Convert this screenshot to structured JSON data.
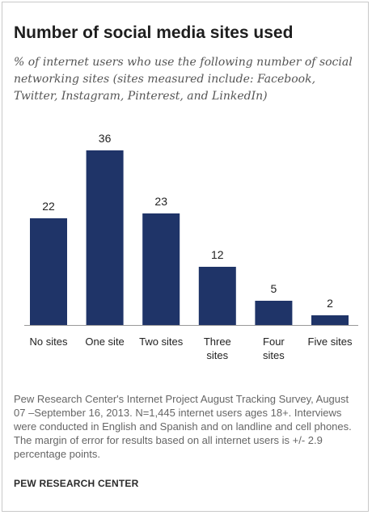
{
  "chart_data": {
    "type": "bar",
    "title": "Number of social media sites used",
    "subtitle": "% of internet users who use the following number of social networking sites (sites measured include: Facebook, Twitter, Instagram, Pinterest, and LinkedIn)",
    "categories": [
      "No sites",
      "One site",
      "Two sites",
      "Three sites",
      "Four sites",
      "Five sites"
    ],
    "category_lines": [
      [
        "No sites"
      ],
      [
        "One site"
      ],
      [
        "Two sites"
      ],
      [
        "Three",
        "sites"
      ],
      [
        "Four",
        "sites"
      ],
      [
        "Five sites"
      ]
    ],
    "values": [
      22,
      36,
      23,
      12,
      5,
      2
    ],
    "xlabel": "",
    "ylabel": "",
    "ylim": [
      0,
      36
    ],
    "grid": false,
    "bar_color": "#1f3468"
  },
  "footer": {
    "note": "Pew Research Center's Internet Project August Tracking Survey, August 07 –September 16, 2013. N=1,445 internet users ages 18+. Interviews were conducted in English and Spanish and on landline and cell phones. The margin of error for results based on all internet users is +/- 2.9 percentage points.",
    "source": "PEW RESEARCH CENTER"
  }
}
